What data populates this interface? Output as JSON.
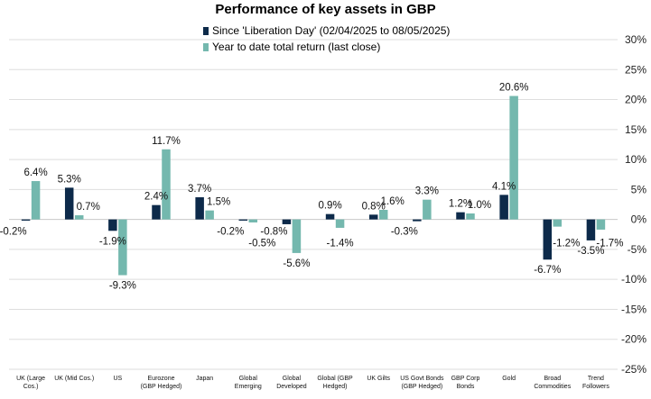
{
  "chart_data": {
    "type": "bar",
    "title": "Performance of key assets in GBP",
    "categories": [
      [
        "UK (Large",
        "Cos.)"
      ],
      [
        "UK (Mid Cos.)"
      ],
      [
        "US"
      ],
      [
        "Eurozone",
        "(GBP Hedged)"
      ],
      [
        "Japan"
      ],
      [
        "Global",
        "Emerging"
      ],
      [
        "Global",
        "Developed"
      ],
      [
        "Global (GBP",
        "Hedged)"
      ],
      [
        "UK Gilts"
      ],
      [
        "US Govt Bonds",
        "(GBP Hedged)"
      ],
      [
        "GBP Corp",
        "Bonds"
      ],
      [
        "Gold"
      ],
      [
        "Broad",
        "Commodities"
      ],
      [
        "Trend",
        "Followers"
      ]
    ],
    "series": [
      {
        "name": "Since 'Liberation Day' (02/04/2025 to 08/05/2025)",
        "color": "#0d2a4a",
        "values": [
          -0.2,
          5.3,
          -1.9,
          2.4,
          3.7,
          -0.2,
          -0.8,
          0.9,
          0.8,
          -0.3,
          1.2,
          4.1,
          -6.7,
          -3.5
        ]
      },
      {
        "name": "Year to date total return (last close)",
        "color": "#74b8ae",
        "values": [
          6.4,
          0.7,
          -9.3,
          11.7,
          1.5,
          -0.5,
          -5.6,
          -1.4,
          1.6,
          3.3,
          1.0,
          20.6,
          -1.2,
          -1.7
        ]
      }
    ],
    "ylim": [
      -25,
      30
    ],
    "yticks": [
      30,
      25,
      20,
      15,
      10,
      5,
      0,
      -5,
      -10,
      -15,
      -20,
      -25
    ],
    "tick_suffix": "%",
    "grid": true,
    "legend_position": "top-center"
  }
}
